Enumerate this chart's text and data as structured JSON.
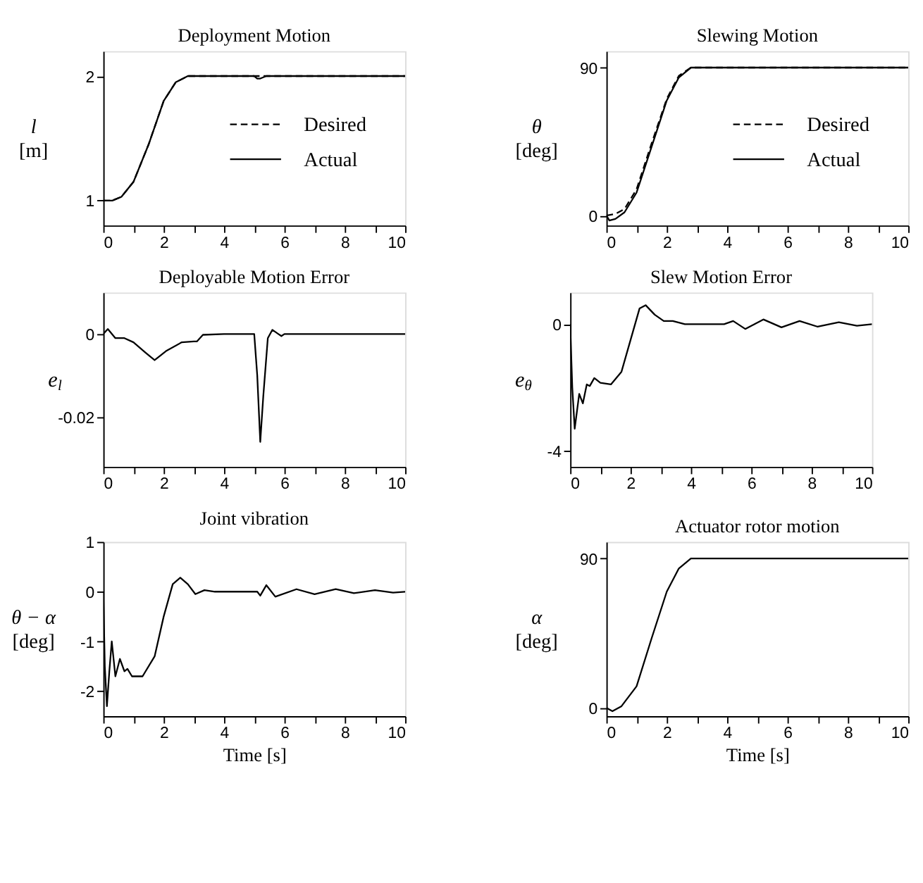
{
  "chart_data": [
    {
      "type": "line",
      "title": "Deployment Motion",
      "ylabel": "l\n[m]",
      "xlim": [
        0,
        10
      ],
      "ylim": [
        0.8,
        2.2
      ],
      "xticks": [
        0,
        {
          "value": 1,
          "label": null
        },
        2,
        {
          "value": 3,
          "label": null
        },
        4,
        {
          "value": 5,
          "label": null
        },
        6,
        {
          "value": 7,
          "label": null
        },
        8,
        {
          "value": 9,
          "label": null
        },
        10
      ],
      "yticks": [
        1,
        2
      ],
      "legend": "right",
      "series": [
        {
          "name": "Desired",
          "color": "#000000",
          "line_style": "dashed",
          "x": [
            0,
            0.3,
            0.6,
            1,
            1.5,
            2,
            2.4,
            2.8,
            5,
            10
          ],
          "values": [
            1,
            1.0,
            1.03,
            1.15,
            1.45,
            1.8,
            1.95,
            2.0,
            2.0,
            2.0
          ]
        },
        {
          "name": "Actual",
          "color": "#000000",
          "line_style": "solid",
          "x": [
            0,
            0.3,
            0.6,
            1,
            1.5,
            2,
            2.4,
            2.8,
            5,
            5.1,
            5.2,
            5.3,
            5.4,
            10
          ],
          "values": [
            1,
            1.0,
            1.03,
            1.15,
            1.45,
            1.8,
            1.95,
            2.0,
            2.0,
            1.98,
            1.98,
            1.99,
            2.0,
            2.0
          ]
        }
      ]
    },
    {
      "type": "line",
      "title": "Slewing Motion",
      "ylabel": "θ\n[deg]",
      "xlim": [
        0,
        10
      ],
      "ylim": [
        -6,
        100
      ],
      "xticks": [
        0,
        {
          "value": 1,
          "label": null
        },
        2,
        {
          "value": 3,
          "label": null
        },
        4,
        {
          "value": 5,
          "label": null
        },
        6,
        {
          "value": 7,
          "label": null
        },
        8,
        {
          "value": 9,
          "label": null
        },
        10
      ],
      "yticks": [
        0,
        90
      ],
      "legend": "right",
      "series": [
        {
          "name": "Desired",
          "color": "#000000",
          "line_style": "dashed",
          "x": [
            0,
            0.3,
            0.6,
            1,
            1.5,
            2,
            2.4,
            2.8,
            10
          ],
          "values": [
            0,
            1,
            4,
            16,
            44,
            71,
            85,
            90,
            90
          ]
        },
        {
          "name": "Actual",
          "color": "#000000",
          "line_style": "solid",
          "x": [
            0,
            0.1,
            0.3,
            0.6,
            1,
            1.5,
            2,
            2.4,
            2.8,
            10
          ],
          "values": [
            0,
            -3,
            -2,
            2,
            14,
            42,
            70,
            84,
            90,
            90
          ]
        }
      ]
    },
    {
      "type": "line",
      "title": "Deployable Motion Error",
      "ylabel": "e$_{l}$",
      "xlim": [
        0,
        10
      ],
      "ylim": [
        -0.032,
        0.01
      ],
      "xticks": [
        0,
        {
          "value": 1,
          "label": null
        },
        2,
        {
          "value": 3,
          "label": null
        },
        4,
        {
          "value": 5,
          "label": null
        },
        6,
        {
          "value": 7,
          "label": null
        },
        8,
        {
          "value": 9,
          "label": null
        },
        10
      ],
      "yticks": [
        -0.02,
        0
      ],
      "series": [
        {
          "color": "#000000",
          "line_style": "solid",
          "x": [
            0,
            0.15,
            0.4,
            0.7,
            1,
            1.4,
            1.7,
            2.1,
            2.6,
            3,
            3.1,
            3.3,
            4,
            5,
            5.1,
            5.2,
            5.3,
            5.45,
            5.6,
            5.8,
            5.9,
            6,
            10
          ],
          "values": [
            0,
            0.0012,
            -0.001,
            -0.001,
            -0.002,
            -0.0045,
            -0.0063,
            -0.004,
            -0.002,
            -0.0018,
            -0.0018,
            -0.0002,
            0,
            0,
            -0.01,
            -0.026,
            -0.015,
            -0.001,
            0.001,
            0,
            -0.0005,
            0,
            0
          ]
        }
      ]
    },
    {
      "type": "line",
      "title": "Slew Motion Error",
      "ylabel": "e$_{θ}$",
      "xlim": [
        0,
        10
      ],
      "ylim": [
        -4.5,
        1
      ],
      "xticks": [
        0,
        {
          "value": 1,
          "label": null
        },
        2,
        {
          "value": 3,
          "label": null
        },
        4,
        {
          "value": 5,
          "label": null
        },
        6,
        {
          "value": 7,
          "label": null
        },
        8,
        {
          "value": 9,
          "label": null
        },
        10
      ],
      "yticks": [
        -4,
        0
      ],
      "series": [
        {
          "color": "#000000",
          "line_style": "solid",
          "x": [
            0,
            0.07,
            0.15,
            0.3,
            0.42,
            0.55,
            0.65,
            0.8,
            1.0,
            1.35,
            1.7,
            2,
            2.3,
            2.5,
            2.8,
            3.1,
            3.4,
            3.8,
            5.1,
            5.4,
            5.8,
            6.4,
            7,
            7.6,
            8.2,
            8.9,
            9.5,
            10
          ],
          "values": [
            0,
            -2,
            -3.3,
            -2.2,
            -2.5,
            -1.9,
            -1.95,
            -1.7,
            -1.85,
            -1.9,
            -1.5,
            -0.5,
            0.5,
            0.6,
            0.3,
            0.1,
            0.1,
            0,
            0,
            0.1,
            -0.15,
            0.15,
            -0.1,
            0.1,
            -0.08,
            0.06,
            -0.05,
            0
          ]
        }
      ]
    },
    {
      "type": "line",
      "title": "Joint vibration",
      "xlabel": "Time [s]",
      "ylabel": "θ − α\n[deg]",
      "xlim": [
        0,
        10
      ],
      "ylim": [
        -2.5,
        1
      ],
      "xticks": [
        0,
        {
          "value": 1,
          "label": null
        },
        2,
        {
          "value": 3,
          "label": null
        },
        4,
        {
          "value": 5,
          "label": null
        },
        6,
        {
          "value": 7,
          "label": null
        },
        8,
        {
          "value": 9,
          "label": null
        },
        10
      ],
      "yticks": [
        -2,
        -1,
        0,
        1
      ],
      "series": [
        {
          "color": "#000000",
          "line_style": "solid",
          "x": [
            0,
            0.05,
            0.12,
            0.2,
            0.28,
            0.4,
            0.55,
            0.7,
            0.8,
            0.95,
            1.3,
            1.7,
            2,
            2.3,
            2.55,
            2.8,
            3.05,
            3.35,
            3.7,
            5.1,
            5.2,
            5.4,
            5.7,
            6.4,
            7,
            7.7,
            8.3,
            9,
            9.6,
            10
          ],
          "values": [
            0,
            -1.5,
            -2.3,
            -1.6,
            -1.0,
            -1.7,
            -1.35,
            -1.6,
            -1.55,
            -1.7,
            -1.7,
            -1.3,
            -0.5,
            0.15,
            0.28,
            0.15,
            -0.05,
            0.03,
            0,
            0,
            -0.08,
            0.13,
            -0.1,
            0.05,
            -0.05,
            0.05,
            -0.03,
            0.03,
            -0.02,
            0
          ]
        }
      ]
    },
    {
      "type": "line",
      "title": "Actuator rotor motion",
      "xlabel": "Time [s]",
      "ylabel": "α\n[deg]",
      "xlim": [
        0,
        10
      ],
      "ylim": [
        -5,
        100
      ],
      "xticks": [
        0,
        {
          "value": 1,
          "label": null
        },
        2,
        {
          "value": 3,
          "label": null
        },
        4,
        {
          "value": 5,
          "label": null
        },
        6,
        {
          "value": 7,
          "label": null
        },
        8,
        {
          "value": 9,
          "label": null
        },
        10
      ],
      "yticks": [
        0,
        90
      ],
      "series": [
        {
          "color": "#000000",
          "line_style": "solid",
          "x": [
            0,
            0.2,
            0.5,
            1,
            1.5,
            2,
            2.4,
            2.8,
            10
          ],
          "values": [
            0,
            -2,
            1,
            13,
            42,
            70,
            84,
            90,
            90
          ]
        }
      ]
    }
  ]
}
